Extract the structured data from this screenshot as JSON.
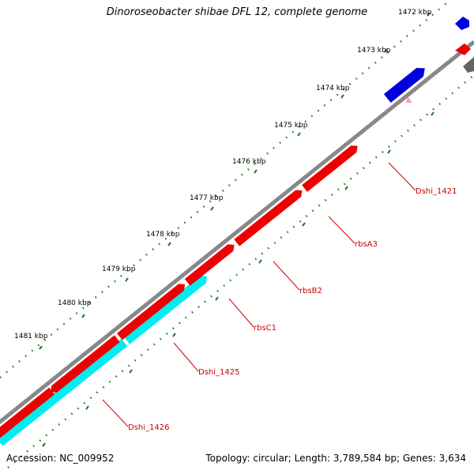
{
  "title": "Dinoroseobacter shibae DFL 12, complete genome",
  "footer": {
    "accession": "Accession: NC_009952",
    "info": "Topology: circular; Length: 3,789,584 bp; Genes: 3,634"
  },
  "colors": {
    "backbone": "#888888",
    "gene_forward": "#0000dd",
    "gene_reverse": "#ee0000",
    "gene_cyan": "#00eeee",
    "gene_gray": "#666666",
    "tick": "#1a7a1a",
    "label": "#cc0000"
  },
  "ticks": [
    "1472 kbp",
    "1473 kbp",
    "1474 kbp",
    "1475 kbp",
    "1476 kbp",
    "1477 kbp",
    "1478 kbp",
    "1479 kbp",
    "1480 kbp",
    "1481 kbp"
  ],
  "gene_labels": [
    "Dshi_1421",
    "rbsA3",
    "rbsB2",
    "rbsC1",
    "Dshi_1425",
    "Dshi_1426"
  ]
}
